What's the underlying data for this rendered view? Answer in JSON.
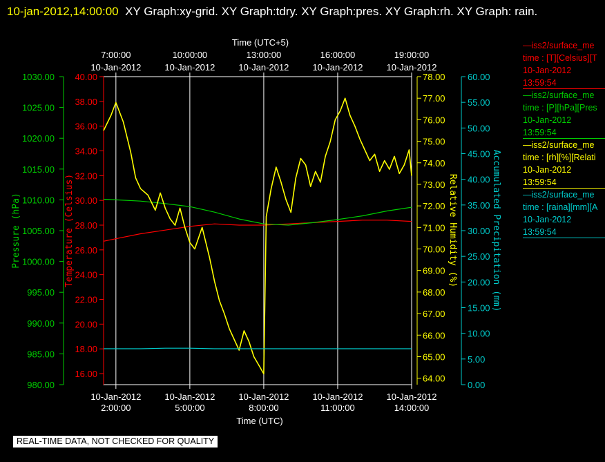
{
  "header": {
    "timestamp": "10-jan-2012,14:00:00",
    "title_text": "XY Graph:xy-grid.  XY Graph:tdry.  XY Graph:pres.  XY Graph:rh.  XY Graph: rain."
  },
  "disclaimer": "REAL-TIME DATA, NOT CHECKED FOR QUALITY",
  "colors": {
    "background": "#000000",
    "temperature": "#ff0000",
    "pressure": "#00cc00",
    "humidity": "#ffff00",
    "precipitation": "#00cccc",
    "grid": "#ffffff"
  },
  "legend": [
    {
      "line1": "—iss2/surface_me",
      "line2": "time : [T][Celsius][T",
      "line3": "10-Jan-2012",
      "line4": "13:59:54",
      "color": "#ff0000"
    },
    {
      "line1": "—iss2/surface_me",
      "line2": "time : [P][hPa][Pres",
      "line3": "10-Jan-2012",
      "line4": "13:59:54",
      "color": "#00cc00"
    },
    {
      "line1": "—iss2/surface_me",
      "line2": "time : [rh][%][Relati",
      "line3": "10-Jan-2012",
      "line4": "13:59:54",
      "color": "#ffff00"
    },
    {
      "line1": "—iss2/surface_me",
      "line2": "time : [raina][mm][A",
      "line3": "10-Jan-2012",
      "line4": "13:59:54",
      "color": "#00cccc"
    }
  ],
  "chart_data": {
    "type": "line",
    "grid": true,
    "x_axis_bottom": {
      "label": "Time (UTC)",
      "range": [
        1.5,
        14.0
      ],
      "ticks": [
        {
          "value": 2,
          "line1": "10-Jan-2012",
          "line2": "2:00:00"
        },
        {
          "value": 5,
          "line1": "10-Jan-2012",
          "line2": "5:00:00"
        },
        {
          "value": 8,
          "line1": "10-Jan-2012",
          "line2": "8:00:00"
        },
        {
          "value": 11,
          "line1": "10-Jan-2012",
          "line2": "11:00:00"
        },
        {
          "value": 14,
          "line1": "10-Jan-2012",
          "line2": "14:00:00"
        }
      ]
    },
    "x_axis_top": {
      "label": "Time (UTC+5)",
      "ticks": [
        {
          "value": 2,
          "line1": "7:00:00",
          "line2": "10-Jan-2012"
        },
        {
          "value": 5,
          "line1": "10:00:00",
          "line2": "10-Jan-2012"
        },
        {
          "value": 8,
          "line1": "13:00:00",
          "line2": "10-Jan-2012"
        },
        {
          "value": 11,
          "line1": "16:00:00",
          "line2": "10-Jan-2012"
        },
        {
          "value": 14,
          "line1": "19:00:00",
          "line2": "10-Jan-2012"
        }
      ]
    },
    "y_axes": {
      "pressure": {
        "label": "Pressure (hPa)",
        "range": [
          980,
          1030
        ],
        "ticks": [
          "980.00",
          "985.00",
          "990.00",
          "995.00",
          "1000.00",
          "1005.00",
          "1010.00",
          "1015.00",
          "1020.00",
          "1025.00",
          "1030.00"
        ]
      },
      "temperature": {
        "label": "Temperature (Celsius)",
        "range": [
          15,
          40
        ],
        "ticks": [
          "16.00",
          "18.00",
          "20.00",
          "22.00",
          "24.00",
          "26.00",
          "28.00",
          "30.00",
          "32.00",
          "34.00",
          "36.00",
          "38.00",
          "40.00"
        ]
      },
      "humidity": {
        "label": "Relative Humidity (%)",
        "range": [
          63.7,
          78
        ],
        "ticks": [
          "64.00",
          "65.00",
          "66.00",
          "67.00",
          "68.00",
          "69.00",
          "70.00",
          "71.00",
          "72.00",
          "73.00",
          "74.00",
          "75.00",
          "76.00",
          "77.00",
          "78.00"
        ]
      },
      "precipitation": {
        "label": "Accumulated Precipitation (mm)",
        "range": [
          0,
          60
        ],
        "ticks": [
          "0.00",
          "5.00",
          "10.00",
          "15.00",
          "20.00",
          "25.00",
          "30.00",
          "35.00",
          "40.00",
          "45.00",
          "50.00",
          "55.00",
          "60.00"
        ]
      }
    },
    "series": [
      {
        "key": "temperature",
        "axis": "temperature",
        "color": "#ff0000",
        "x": [
          1.5,
          2.0,
          3.0,
          4.0,
          5.0,
          6.0,
          7.0,
          8.0,
          9.0,
          10.0,
          11.0,
          12.0,
          13.0,
          14.0
        ],
        "y": [
          26.7,
          26.9,
          27.3,
          27.6,
          27.9,
          28.1,
          28.0,
          28.0,
          28.1,
          28.2,
          28.3,
          28.4,
          28.4,
          28.3
        ]
      },
      {
        "key": "pressure",
        "axis": "pressure",
        "color": "#00cc00",
        "x": [
          1.5,
          2.0,
          3.0,
          4.0,
          5.0,
          6.0,
          7.0,
          8.0,
          9.0,
          10.0,
          11.0,
          12.0,
          13.0,
          14.0
        ],
        "y": [
          1010.1,
          1010.0,
          1009.8,
          1009.4,
          1008.9,
          1008.0,
          1006.9,
          1006.1,
          1005.9,
          1006.3,
          1006.8,
          1007.4,
          1008.2,
          1008.8
        ]
      },
      {
        "key": "humidity",
        "axis": "humidity",
        "color": "#ffff00",
        "x": [
          1.5,
          1.8,
          2.0,
          2.3,
          2.6,
          2.8,
          3.0,
          3.3,
          3.6,
          3.8,
          4.0,
          4.2,
          4.4,
          4.6,
          4.8,
          5.0,
          5.2,
          5.5,
          5.8,
          6.0,
          6.2,
          6.4,
          6.6,
          6.8,
          7.0,
          7.2,
          7.4,
          7.6,
          7.8,
          8.0,
          8.1,
          8.3,
          8.5,
          8.7,
          8.9,
          9.1,
          9.3,
          9.5,
          9.7,
          9.9,
          10.1,
          10.3,
          10.5,
          10.7,
          10.9,
          11.1,
          11.3,
          11.5,
          11.7,
          11.9,
          12.1,
          12.3,
          12.5,
          12.7,
          12.9,
          13.1,
          13.3,
          13.5,
          13.7,
          13.9,
          14.0
        ],
        "y": [
          75.5,
          76.2,
          76.8,
          75.9,
          74.5,
          73.3,
          72.8,
          72.5,
          71.8,
          72.6,
          71.9,
          71.4,
          71.1,
          71.9,
          71.0,
          70.3,
          70.0,
          71.0,
          69.6,
          68.5,
          67.6,
          67.0,
          66.3,
          65.8,
          65.3,
          66.2,
          65.7,
          65.0,
          64.6,
          64.2,
          71.5,
          72.8,
          73.8,
          73.1,
          72.3,
          71.7,
          73.3,
          74.2,
          73.9,
          72.9,
          73.6,
          73.1,
          74.3,
          75.0,
          76.0,
          76.4,
          77.0,
          76.2,
          75.7,
          75.1,
          74.6,
          74.1,
          74.4,
          73.6,
          74.1,
          73.7,
          74.3,
          73.5,
          73.9,
          74.6,
          73.4
        ]
      },
      {
        "key": "precipitation",
        "axis": "precipitation",
        "color": "#00cccc",
        "x": [
          1.5,
          2.0,
          3.0,
          4.0,
          5.0,
          6.0,
          7.0,
          8.0,
          9.0,
          10.0,
          11.0,
          12.0,
          13.0,
          14.0
        ],
        "y": [
          7.0,
          7.0,
          7.0,
          7.1,
          7.1,
          7.0,
          7.0,
          7.0,
          7.0,
          7.0,
          7.0,
          7.0,
          7.0,
          7.0
        ]
      }
    ]
  }
}
